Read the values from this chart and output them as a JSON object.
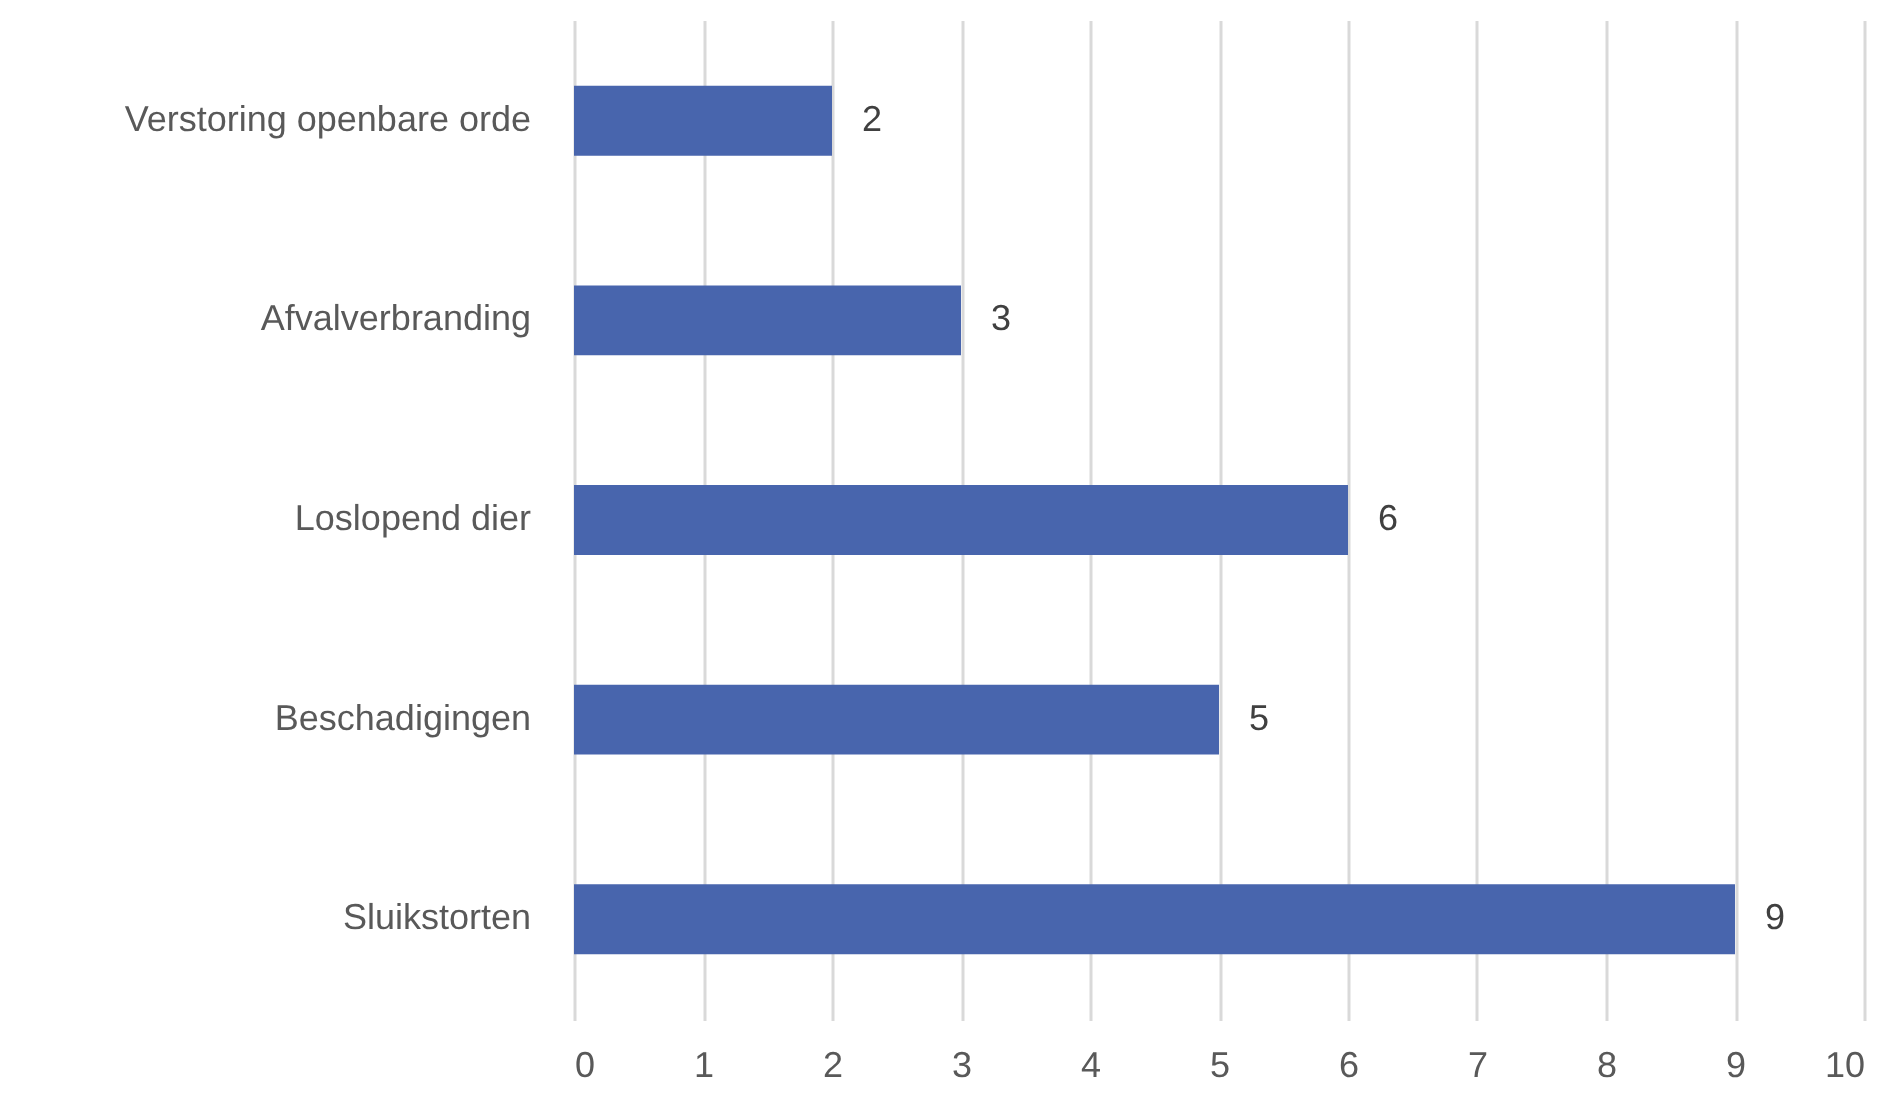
{
  "chart_data": {
    "type": "bar",
    "orientation": "horizontal",
    "categories": [
      "Verstoring openbare orde",
      "Afvalverbranding",
      "Loslopend dier",
      "Beschadigingen",
      "Sluikstorten"
    ],
    "values": [
      2,
      3,
      6,
      5,
      9
    ],
    "color": "#4865ad",
    "xlim": [
      0,
      10
    ],
    "xticks": [
      0,
      1,
      2,
      3,
      4,
      5,
      6,
      7,
      8,
      9,
      10
    ],
    "grid": "x",
    "data_labels": true
  }
}
